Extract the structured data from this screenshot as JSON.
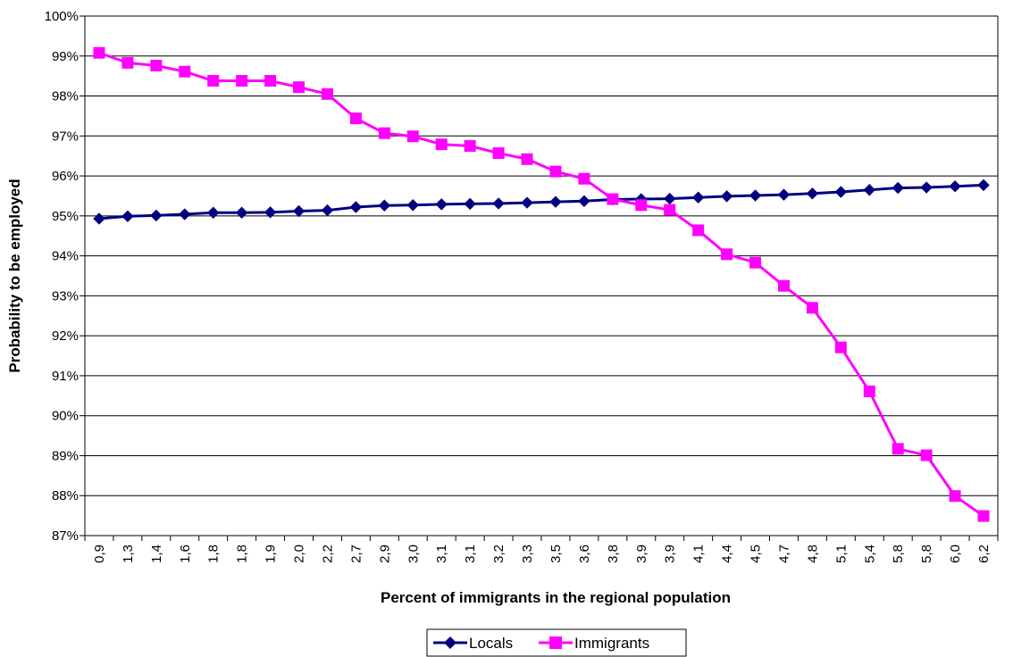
{
  "chart_data": {
    "type": "line",
    "title": "",
    "xlabel": "Percent of immigrants in the regional population",
    "ylabel": "Probability to be employed",
    "categories": [
      "0,9",
      "1,3",
      "1,4",
      "1,6",
      "1,8",
      "1,8",
      "1,9",
      "2,0",
      "2,2",
      "2,7",
      "2,9",
      "3,0",
      "3,1",
      "3,1",
      "3,2",
      "3,3",
      "3,5",
      "3,6",
      "3,8",
      "3,9",
      "3,9",
      "4,1",
      "4,4",
      "4,5",
      "4,7",
      "4,8",
      "5,1",
      "5,4",
      "5,8",
      "5,8",
      "6,0",
      "6,2"
    ],
    "ylim": [
      87,
      100
    ],
    "yticks": [
      "87%",
      "88%",
      "89%",
      "90%",
      "91%",
      "92%",
      "93%",
      "94%",
      "95%",
      "96%",
      "97%",
      "98%",
      "99%",
      "100%"
    ],
    "grid": true,
    "legend_position": "bottom",
    "series": [
      {
        "name": "Locals",
        "color": "#000080",
        "marker": "diamond",
        "values": [
          94.93,
          94.99,
          95.01,
          95.04,
          95.08,
          95.08,
          95.09,
          95.12,
          95.14,
          95.22,
          95.26,
          95.27,
          95.29,
          95.3,
          95.31,
          95.33,
          95.35,
          95.37,
          95.41,
          95.42,
          95.43,
          95.46,
          95.49,
          95.51,
          95.53,
          95.56,
          95.6,
          95.65,
          95.7,
          95.71,
          95.74,
          95.77
        ]
      },
      {
        "name": "Immigrants",
        "color": "#FF00FF",
        "marker": "square",
        "values": [
          99.08,
          98.83,
          98.76,
          98.61,
          98.38,
          98.38,
          98.38,
          98.22,
          98.05,
          97.44,
          97.07,
          96.99,
          96.79,
          96.75,
          96.57,
          96.42,
          96.11,
          95.93,
          95.42,
          95.27,
          95.15,
          94.64,
          94.04,
          93.83,
          93.25,
          92.7,
          91.71,
          90.61,
          89.17,
          89.01,
          87.99,
          87.49
        ]
      }
    ]
  }
}
